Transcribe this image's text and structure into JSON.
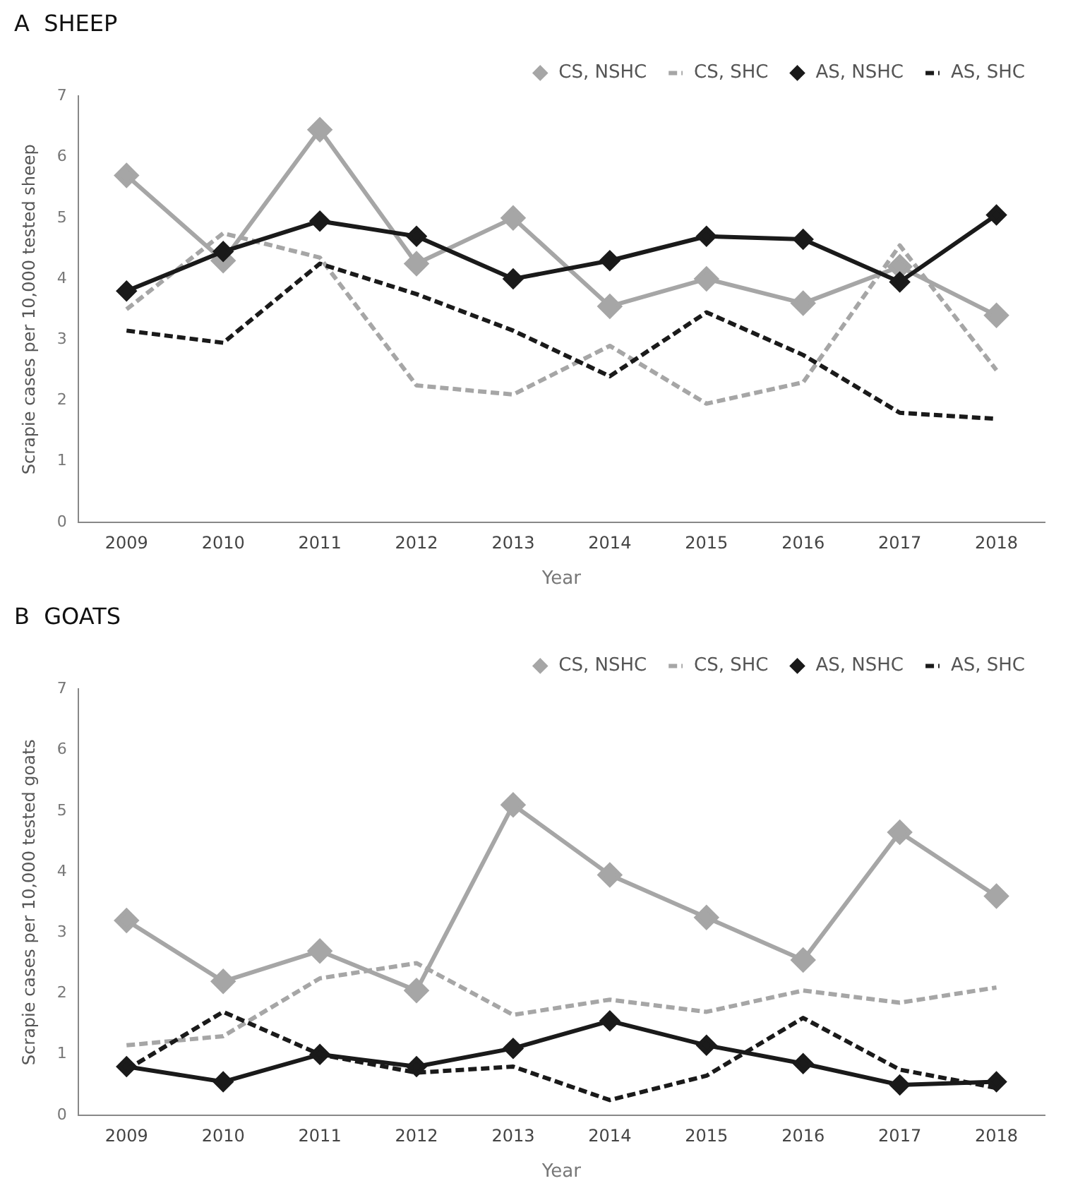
{
  "chart_data": [
    {
      "type": "line",
      "title": "A  SHEEP",
      "xlabel": "Year",
      "ylabel": "Scrapie cases per 10,000 tested sheep",
      "categories": [
        "2009",
        "2010",
        "2011",
        "2012",
        "2013",
        "2014",
        "2015",
        "2016",
        "2017",
        "2018"
      ],
      "ylim": [
        0,
        7
      ],
      "yticks": [
        0,
        1,
        2,
        3,
        4,
        5,
        6,
        7
      ],
      "grid": false,
      "legend": "top right",
      "series": [
        {
          "name": "CS, NSHC",
          "color": "#a6a6a6",
          "marker": "diamond",
          "line_style": "solid",
          "values": [
            5.7,
            4.3,
            6.45,
            4.25,
            5.0,
            3.55,
            4.0,
            3.6,
            4.2,
            3.4
          ]
        },
        {
          "name": "CS, SHC",
          "color": "#a6a6a6",
          "marker": "none",
          "line_style": "dashed",
          "values": [
            3.5,
            4.75,
            4.35,
            2.25,
            2.1,
            2.9,
            1.95,
            2.3,
            4.55,
            2.5
          ]
        },
        {
          "name": "AS, NSHC",
          "color": "#1a1a1a",
          "marker": "diamond",
          "line_style": "solid",
          "values": [
            3.8,
            4.45,
            4.95,
            4.7,
            4.0,
            4.3,
            4.7,
            4.65,
            3.95,
            5.05
          ]
        },
        {
          "name": "AS, SHC",
          "color": "#1a1a1a",
          "marker": "none",
          "line_style": "dashed",
          "values": [
            3.15,
            2.95,
            4.25,
            3.75,
            3.15,
            2.4,
            3.45,
            2.75,
            1.8,
            1.7
          ]
        }
      ]
    },
    {
      "type": "line",
      "title": "B  GOATS",
      "xlabel": "Year",
      "ylabel": "Scrapie cases per 10,000 tested goats",
      "categories": [
        "2009",
        "2010",
        "2011",
        "2012",
        "2013",
        "2014",
        "2015",
        "2016",
        "2017",
        "2018"
      ],
      "ylim": [
        0,
        7
      ],
      "yticks": [
        0,
        1,
        2,
        3,
        4,
        5,
        6,
        7
      ],
      "grid": false,
      "legend": "top right",
      "series": [
        {
          "name": "CS, NSHC",
          "color": "#a6a6a6",
          "marker": "diamond",
          "line_style": "solid",
          "values": [
            3.2,
            2.2,
            2.7,
            2.05,
            5.1,
            3.95,
            3.25,
            2.55,
            4.65,
            3.6
          ]
        },
        {
          "name": "CS, SHC",
          "color": "#a6a6a6",
          "marker": "none",
          "line_style": "dashed",
          "values": [
            1.15,
            1.3,
            2.25,
            2.5,
            1.65,
            1.9,
            1.7,
            2.05,
            1.85,
            2.1
          ]
        },
        {
          "name": "AS, NSHC",
          "color": "#1a1a1a",
          "marker": "diamond",
          "line_style": "solid",
          "values": [
            0.8,
            0.55,
            1.0,
            0.8,
            1.1,
            1.55,
            1.15,
            0.85,
            0.5,
            0.55
          ]
        },
        {
          "name": "AS, SHC",
          "color": "#1a1a1a",
          "marker": "none",
          "line_style": "dashed",
          "values": [
            0.75,
            1.7,
            1.0,
            0.7,
            0.8,
            0.25,
            0.65,
            1.6,
            0.75,
            0.45
          ]
        }
      ]
    }
  ]
}
